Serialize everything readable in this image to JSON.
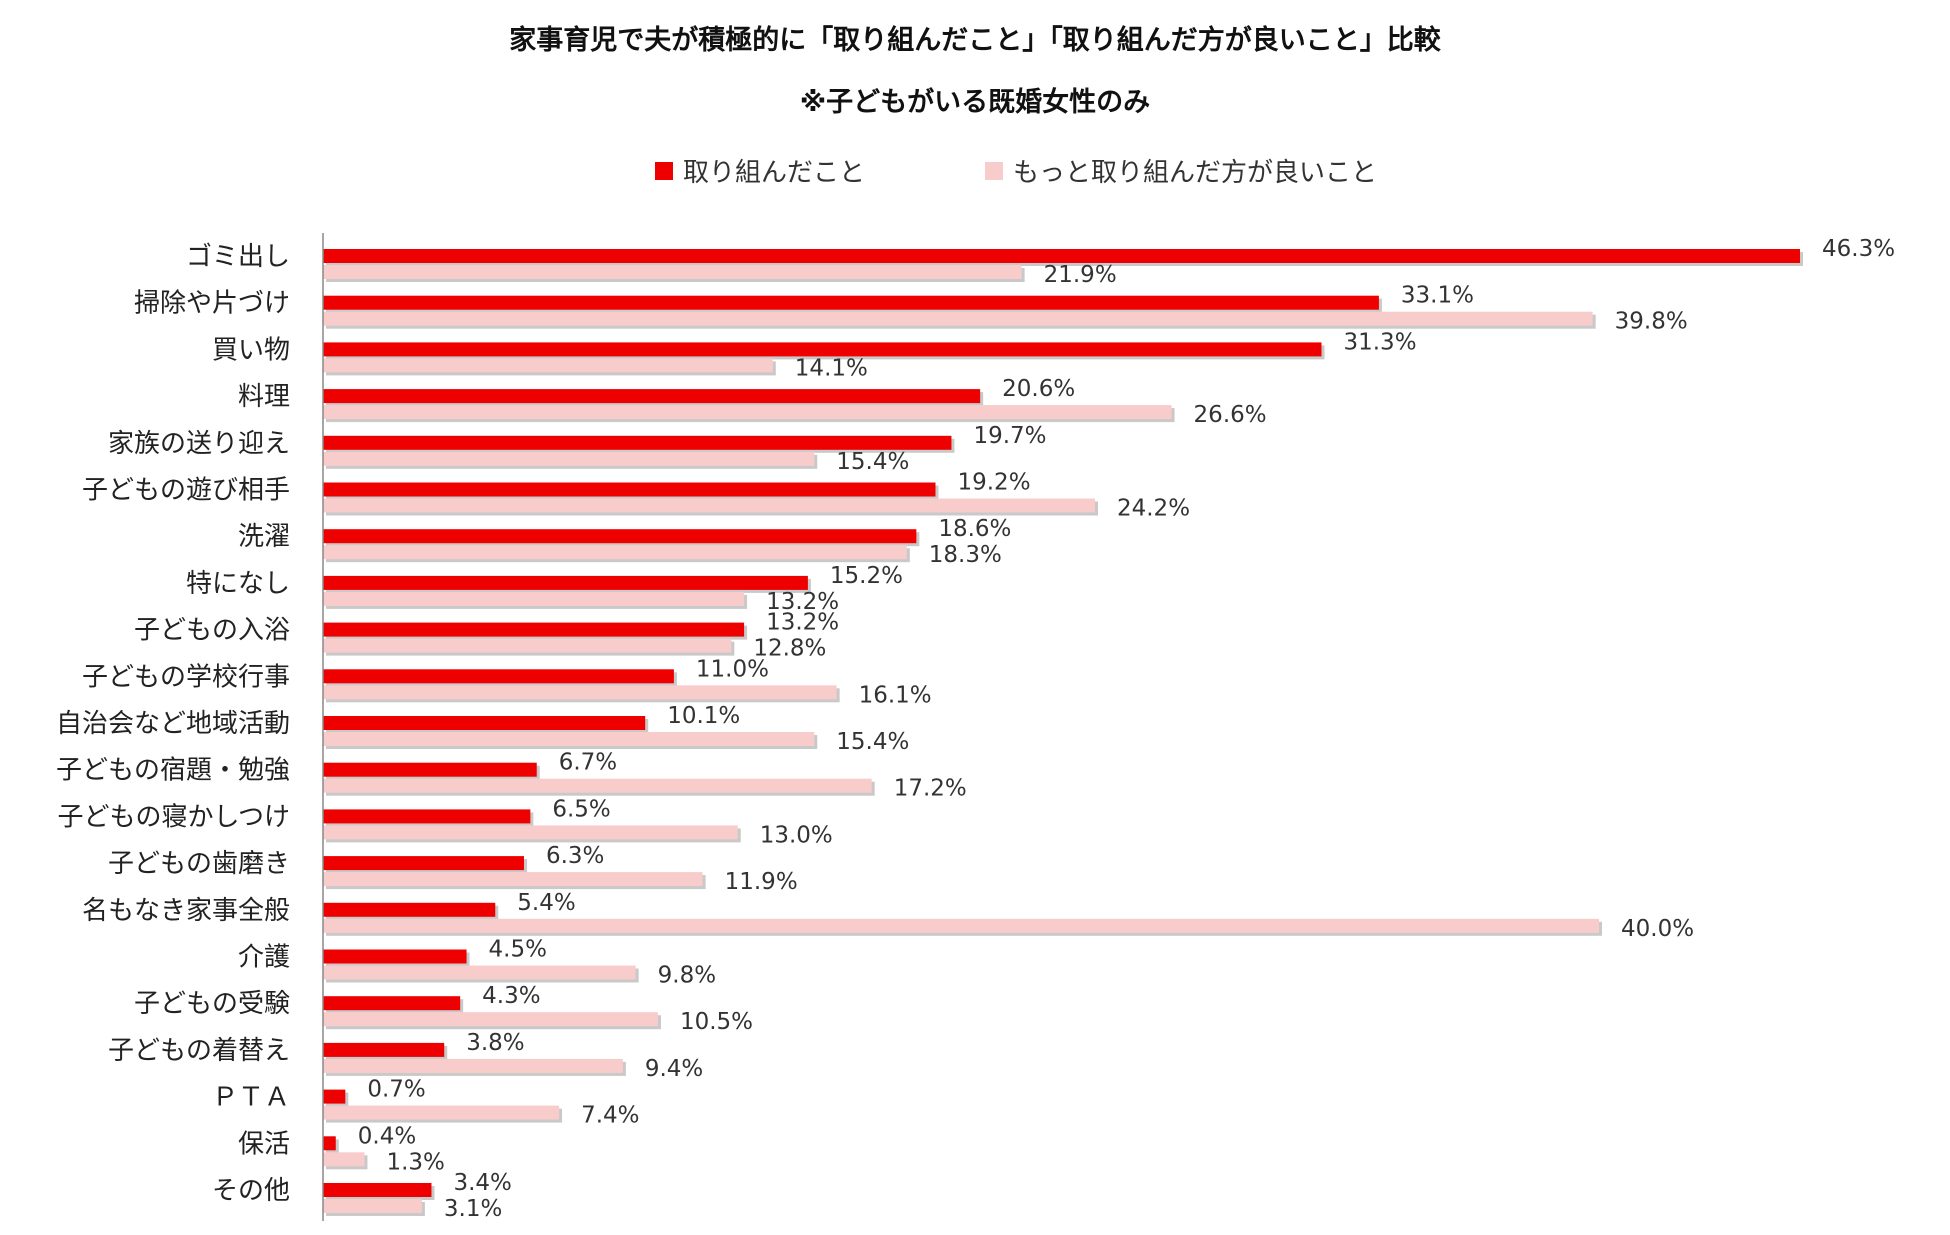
{
  "chart_data": {
    "type": "bar",
    "orientation": "horizontal",
    "title": "家事育児で夫が積極的に「取り組んだこと」「取り組んだ方が良いこと」比較",
    "subtitle": "※子どもがいる既婚女性のみ",
    "legend_position": "top",
    "grid": false,
    "xlim": [
      0,
      46.3
    ],
    "value_suffix": "%",
    "categories": [
      "ゴミ出し",
      "掃除や片づけ",
      "買い物",
      "料理",
      "家族の送り迎え",
      "子どもの遊び相手",
      "洗濯",
      "特になし",
      "子どもの入浴",
      "子どもの学校行事",
      "自治会など地域活動",
      "子どもの宿題・勉強",
      "子どもの寝かしつけ",
      "子どもの歯磨き",
      "名もなき家事全般",
      "介護",
      "子どもの受験",
      "子どもの着替え",
      "ＰＴＡ",
      "保活",
      "その他"
    ],
    "series": [
      {
        "name": "取り組んだこと",
        "color": "#ee0000",
        "values": [
          46.3,
          33.1,
          31.3,
          20.6,
          19.7,
          19.2,
          18.6,
          15.2,
          13.2,
          11.0,
          10.1,
          6.7,
          6.5,
          6.3,
          5.4,
          4.5,
          4.3,
          3.8,
          0.7,
          0.4,
          3.4
        ],
        "labels": [
          "46.3%",
          "33.1%",
          "31.3%",
          "20.6%",
          "19.7%",
          "19.2%",
          "18.6%",
          "15.2%",
          "13.2%",
          "11.0%",
          "10.1%",
          "6.7%",
          "6.5%",
          "6.3%",
          "5.4%",
          "4.5%",
          "4.3%",
          "3.8%",
          "0.7%",
          "0.4%",
          "3.4%"
        ]
      },
      {
        "name": "もっと取り組んだ方が良いこと",
        "color": "#f9cccc",
        "values": [
          21.9,
          39.8,
          14.1,
          26.6,
          15.4,
          24.2,
          18.3,
          13.2,
          12.8,
          16.1,
          15.4,
          17.2,
          13.0,
          11.9,
          40.0,
          9.8,
          10.5,
          9.4,
          7.4,
          1.3,
          3.1
        ],
        "labels": [
          "21.9%",
          "39.8%",
          "14.1%",
          "26.6%",
          "15.4%",
          "24.2%",
          "18.3%",
          "13.2%",
          "12.8%",
          "16.1%",
          "15.4%",
          "17.2%",
          "13.0%",
          "11.9%",
          "40.0%",
          "9.8%",
          "10.5%",
          "9.4%",
          "7.4%",
          "1.3%",
          "3.1%"
        ]
      }
    ]
  }
}
